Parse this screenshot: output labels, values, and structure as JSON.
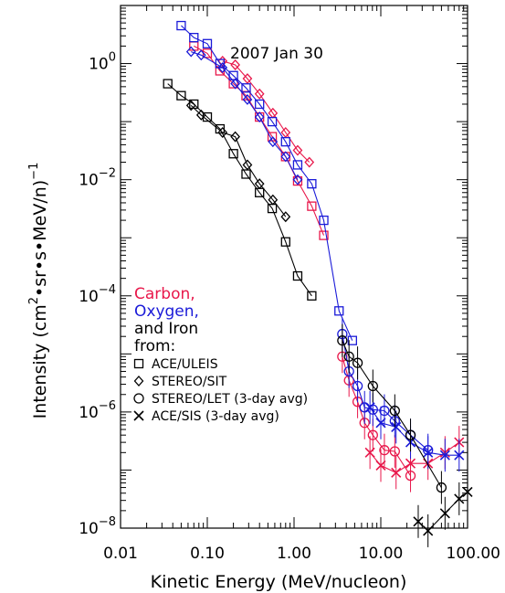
{
  "chart_data": {
    "type": "scatter",
    "title": "2007 Jan 30",
    "xlabel": "Kinetic Energy (MeV/nucleon)",
    "ylabel_parts": {
      "base": "Intensity (cm",
      "exp": "2",
      "mid": "•sr•s•MeV/n)",
      "exp2": "−1"
    },
    "xscale": "log",
    "yscale": "log",
    "xlim": [
      0.01,
      100
    ],
    "ylim": [
      1e-08,
      10
    ],
    "x_tick_labels": [
      "0.01",
      "0.10",
      "1.00",
      "10.00",
      "100.00"
    ],
    "x_tick_values": [
      0.01,
      0.1,
      1,
      10,
      100
    ],
    "y_tick_labels": [
      {
        "base": "10",
        "exp": "0",
        "value": 1
      },
      {
        "base": "10",
        "exp": "−2",
        "value": 0.01
      },
      {
        "base": "10",
        "exp": "−4",
        "value": 0.0001
      },
      {
        "base": "10",
        "exp": "−6",
        "value": 1e-06
      },
      {
        "base": "10",
        "exp": "−8",
        "value": 1e-08
      }
    ],
    "legend_words": [
      {
        "text": "Carbon,",
        "color": "#e8174a"
      },
      {
        "text": "Oxygen,",
        "color": "#1a1ad8"
      },
      {
        "text": "and Iron",
        "color": "#000000"
      },
      {
        "text": "from:",
        "color": "#000000"
      }
    ],
    "legend_entries": [
      {
        "symbol": "square",
        "label": "ACE/ULEIS"
      },
      {
        "symbol": "diamond",
        "label": "STEREO/SIT"
      },
      {
        "symbol": "circle",
        "label": "STEREO/LET (3-day avg)"
      },
      {
        "symbol": "cross",
        "label": "ACE/SIS (3-day avg)"
      }
    ],
    "series": [
      {
        "element": "Carbon",
        "instrument": "ACE/ULEIS",
        "symbol": "square",
        "color": "#e8174a",
        "points": [
          [
            0.07,
            2.0
          ],
          [
            0.1,
            1.5
          ],
          [
            0.14,
            0.75
          ],
          [
            0.2,
            0.45
          ],
          [
            0.28,
            0.28
          ],
          [
            0.4,
            0.12
          ],
          [
            0.56,
            0.055
          ],
          [
            0.8,
            0.025
          ],
          [
            1.1,
            0.0095
          ],
          [
            1.6,
            0.0035
          ],
          [
            2.2,
            0.0011
          ]
        ]
      },
      {
        "element": "Carbon",
        "instrument": "STEREO/SIT",
        "symbol": "diamond",
        "color": "#e8174a",
        "points": [
          [
            0.15,
            1.1
          ],
          [
            0.21,
            0.95
          ],
          [
            0.29,
            0.55
          ],
          [
            0.4,
            0.3
          ],
          [
            0.57,
            0.14
          ],
          [
            0.8,
            0.065
          ],
          [
            1.1,
            0.032
          ],
          [
            1.5,
            0.02
          ]
        ]
      },
      {
        "element": "Carbon",
        "instrument": "STEREO/LET (3-day avg)",
        "symbol": "circle",
        "color": "#e8174a",
        "points": [
          [
            3.6,
            9e-06
          ],
          [
            4.3,
            3.5e-06
          ],
          [
            5.4,
            1.5e-06
          ],
          [
            6.5,
            6.5e-07
          ],
          [
            8.1,
            4e-07
          ],
          [
            11,
            2.2e-07
          ],
          [
            14.5,
            2.1e-07
          ],
          [
            22,
            8e-08
          ]
        ]
      },
      {
        "element": "Carbon",
        "instrument": "ACE/SIS (3-day avg)",
        "symbol": "cross",
        "color": "#e8174a",
        "points": [
          [
            7.5,
            2e-07
          ],
          [
            10,
            1.2e-07
          ],
          [
            15,
            9e-08
          ],
          [
            22,
            1.3e-07
          ],
          [
            35,
            1.3e-07
          ],
          [
            55,
            2e-07
          ],
          [
            80,
            3e-07
          ]
        ]
      },
      {
        "element": "Oxygen",
        "instrument": "ACE/ULEIS",
        "symbol": "square",
        "color": "#1a1ad8",
        "points": [
          [
            0.05,
            4.5
          ],
          [
            0.07,
            2.8
          ],
          [
            0.1,
            2.2
          ],
          [
            0.14,
            1.0
          ],
          [
            0.2,
            0.62
          ],
          [
            0.28,
            0.38
          ],
          [
            0.4,
            0.2
          ],
          [
            0.56,
            0.1
          ],
          [
            0.8,
            0.045
          ],
          [
            1.1,
            0.018
          ],
          [
            1.6,
            0.0085
          ],
          [
            2.2,
            0.002
          ],
          [
            3.3,
            5.5e-05
          ],
          [
            4.7,
            1.7e-05
          ]
        ]
      },
      {
        "element": "Oxygen",
        "instrument": "STEREO/SIT",
        "symbol": "diamond",
        "color": "#1a1ad8",
        "points": [
          [
            0.065,
            1.6
          ],
          [
            0.085,
            1.4
          ],
          [
            0.15,
            0.85
          ],
          [
            0.21,
            0.45
          ],
          [
            0.29,
            0.24
          ],
          [
            0.4,
            0.12
          ],
          [
            0.57,
            0.045
          ],
          [
            0.8,
            0.025
          ],
          [
            1.1,
            0.01
          ]
        ]
      },
      {
        "element": "Oxygen",
        "instrument": "STEREO/LET (3-day avg)",
        "symbol": "circle",
        "color": "#1a1ad8",
        "points": [
          [
            3.6,
            2.2e-05
          ],
          [
            4.3,
            5e-06
          ],
          [
            5.4,
            2.8e-06
          ],
          [
            6.5,
            1.2e-06
          ],
          [
            8.1,
            1.1e-06
          ],
          [
            11,
            1.05e-06
          ],
          [
            14.5,
            7e-07
          ],
          [
            22,
            4e-07
          ],
          [
            35,
            2.2e-07
          ]
        ]
      },
      {
        "element": "Oxygen",
        "instrument": "ACE/SIS (3-day avg)",
        "symbol": "cross",
        "color": "#1a1ad8",
        "points": [
          [
            7.5,
            1.2e-06
          ],
          [
            10,
            6.5e-07
          ],
          [
            15,
            5.5e-07
          ],
          [
            22,
            3e-07
          ],
          [
            35,
            2e-07
          ],
          [
            55,
            1.8e-07
          ],
          [
            80,
            1.8e-07
          ]
        ]
      },
      {
        "element": "Iron",
        "instrument": "ACE/ULEIS",
        "symbol": "square",
        "color": "#000000",
        "points": [
          [
            0.035,
            0.45
          ],
          [
            0.05,
            0.28
          ],
          [
            0.07,
            0.2
          ],
          [
            0.1,
            0.12
          ],
          [
            0.14,
            0.075
          ],
          [
            0.2,
            0.028
          ],
          [
            0.28,
            0.0125
          ],
          [
            0.4,
            0.006
          ],
          [
            0.56,
            0.0032
          ],
          [
            0.8,
            0.00085
          ],
          [
            1.1,
            0.00022
          ],
          [
            1.6,
            0.0001
          ]
        ]
      },
      {
        "element": "Iron",
        "instrument": "STEREO/SIT",
        "symbol": "diamond",
        "color": "#000000",
        "points": [
          [
            0.065,
            0.19
          ],
          [
            0.085,
            0.13
          ],
          [
            0.15,
            0.065
          ],
          [
            0.21,
            0.055
          ],
          [
            0.29,
            0.018
          ],
          [
            0.4,
            0.0085
          ],
          [
            0.57,
            0.0045
          ],
          [
            0.8,
            0.0023
          ]
        ]
      },
      {
        "element": "Iron",
        "instrument": "STEREO/LET (3-day avg)",
        "symbol": "circle",
        "color": "#000000",
        "points": [
          [
            3.6,
            1.7e-05
          ],
          [
            4.3,
            9e-06
          ],
          [
            5.4,
            7e-06
          ],
          [
            8.1,
            2.8e-06
          ],
          [
            14.5,
            1.05e-06
          ],
          [
            22,
            4e-07
          ],
          [
            50,
            5e-08
          ]
        ]
      },
      {
        "element": "Iron",
        "instrument": "ACE/SIS (3-day avg)",
        "symbol": "cross",
        "color": "#000000",
        "points": [
          [
            27,
            1.3e-08
          ],
          [
            35,
            9e-09
          ],
          [
            55,
            1.8e-08
          ],
          [
            80,
            3.2e-08
          ],
          [
            100,
            4.2e-08
          ]
        ]
      }
    ]
  }
}
